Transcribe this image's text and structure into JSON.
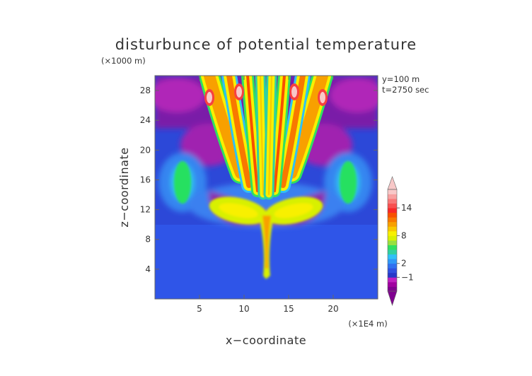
{
  "chart_data": {
    "type": "heatmap",
    "title": "disturbunce of potential temperature",
    "ylabel_unit": "(×1000 m)",
    "xlabel": "x−coordinate",
    "ylabel": "z−coordinate",
    "xlabel_unit": "(×1E4 m)",
    "annotations": [
      "y=100 m",
      "t=2750 sec"
    ],
    "xlim": [
      0,
      25
    ],
    "ylim": [
      0,
      30
    ],
    "xticks": [
      5,
      10,
      15,
      20
    ],
    "yticks": [
      4,
      8,
      12,
      16,
      20,
      24,
      28
    ],
    "colorbar": {
      "tick_labels": [
        "14",
        "8",
        "2",
        "−1"
      ],
      "tick_values": [
        14,
        8,
        2,
        -1
      ],
      "range": [
        -4,
        18
      ],
      "colors": [
        "#800090",
        "#a000a0",
        "#c020c0",
        "#2838c8",
        "#3050e0",
        "#3070f0",
        "#3098f8",
        "#30c0f8",
        "#30d0a0",
        "#30e060",
        "#98e040",
        "#d8f000",
        "#f8f000",
        "#f8c800",
        "#f8a000",
        "#f87800",
        "#f85000",
        "#f82828",
        "#f85050",
        "#f87878",
        "#f8a0a0",
        "#f8c8c8"
      ],
      "extend": "both"
    }
  }
}
